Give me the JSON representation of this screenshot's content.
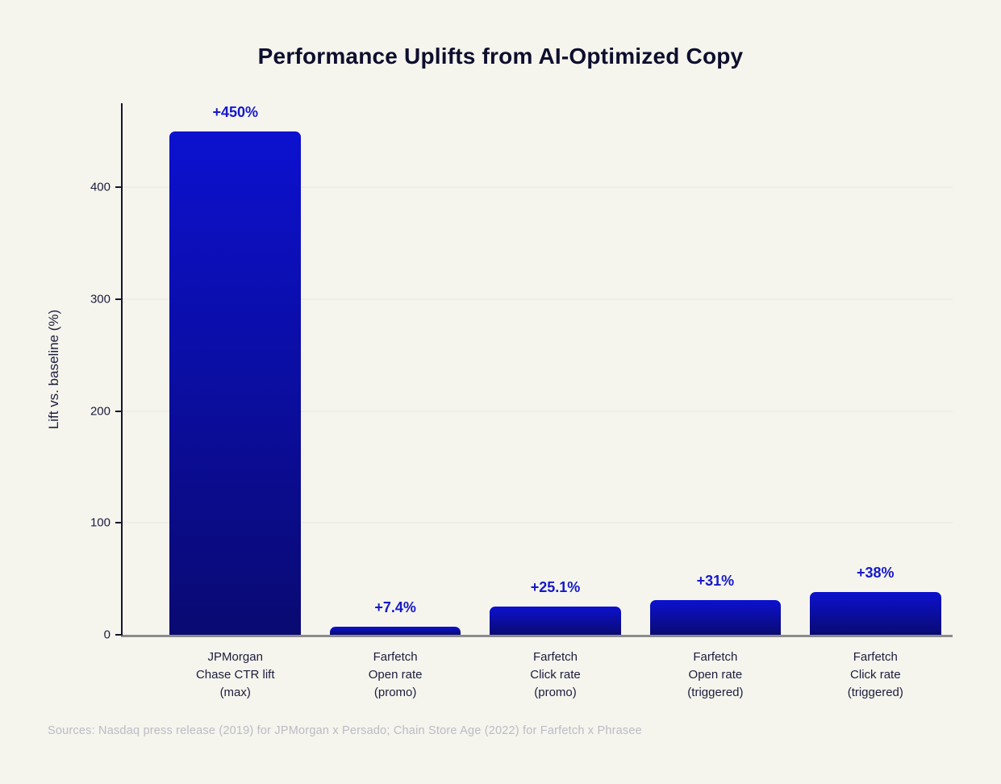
{
  "title": "Performance Uplifts from AI-Optimized Copy",
  "chart_data": {
    "type": "bar",
    "title": "Performance Uplifts from AI-Optimized Copy",
    "categories": [
      "JPMorgan\nChase CTR lift\n(max)",
      "Farfetch\nOpen rate\n(promo)",
      "Farfetch\nClick rate\n(promo)",
      "Farfetch\nOpen rate\n(triggered)",
      "Farfetch\nClick rate\n(triggered)"
    ],
    "values": [
      450,
      7.4,
      25.1,
      31,
      38
    ],
    "value_labels": [
      "+450%",
      "+7.4%",
      "+25.1%",
      "+31%",
      "+38%"
    ],
    "xlabel": "",
    "ylabel": "Lift vs. baseline (%)",
    "ylim": [
      0,
      475
    ],
    "yticks": [
      0,
      100,
      200,
      300,
      400
    ],
    "grid": "horizontal-light",
    "legend": "none"
  },
  "source_note": "Sources: Nasdaq press release (2019) for JPMorgan x Persado; Chain Store Age (2022) for Farfetch x Phrasee",
  "colors": {
    "background": "#f5f5ee",
    "bar_gradient_top": "#0c11cf",
    "bar_gradient_bottom": "#0a0a72",
    "value_label": "#1518c9",
    "title_text": "#0e0e2e",
    "axis_text": "#1c1c3c",
    "gridline": "#e7e7de",
    "x_axis_line": "#8c8c8c",
    "y_axis_line": "#15152e",
    "source_text": "#bbbbc4"
  }
}
